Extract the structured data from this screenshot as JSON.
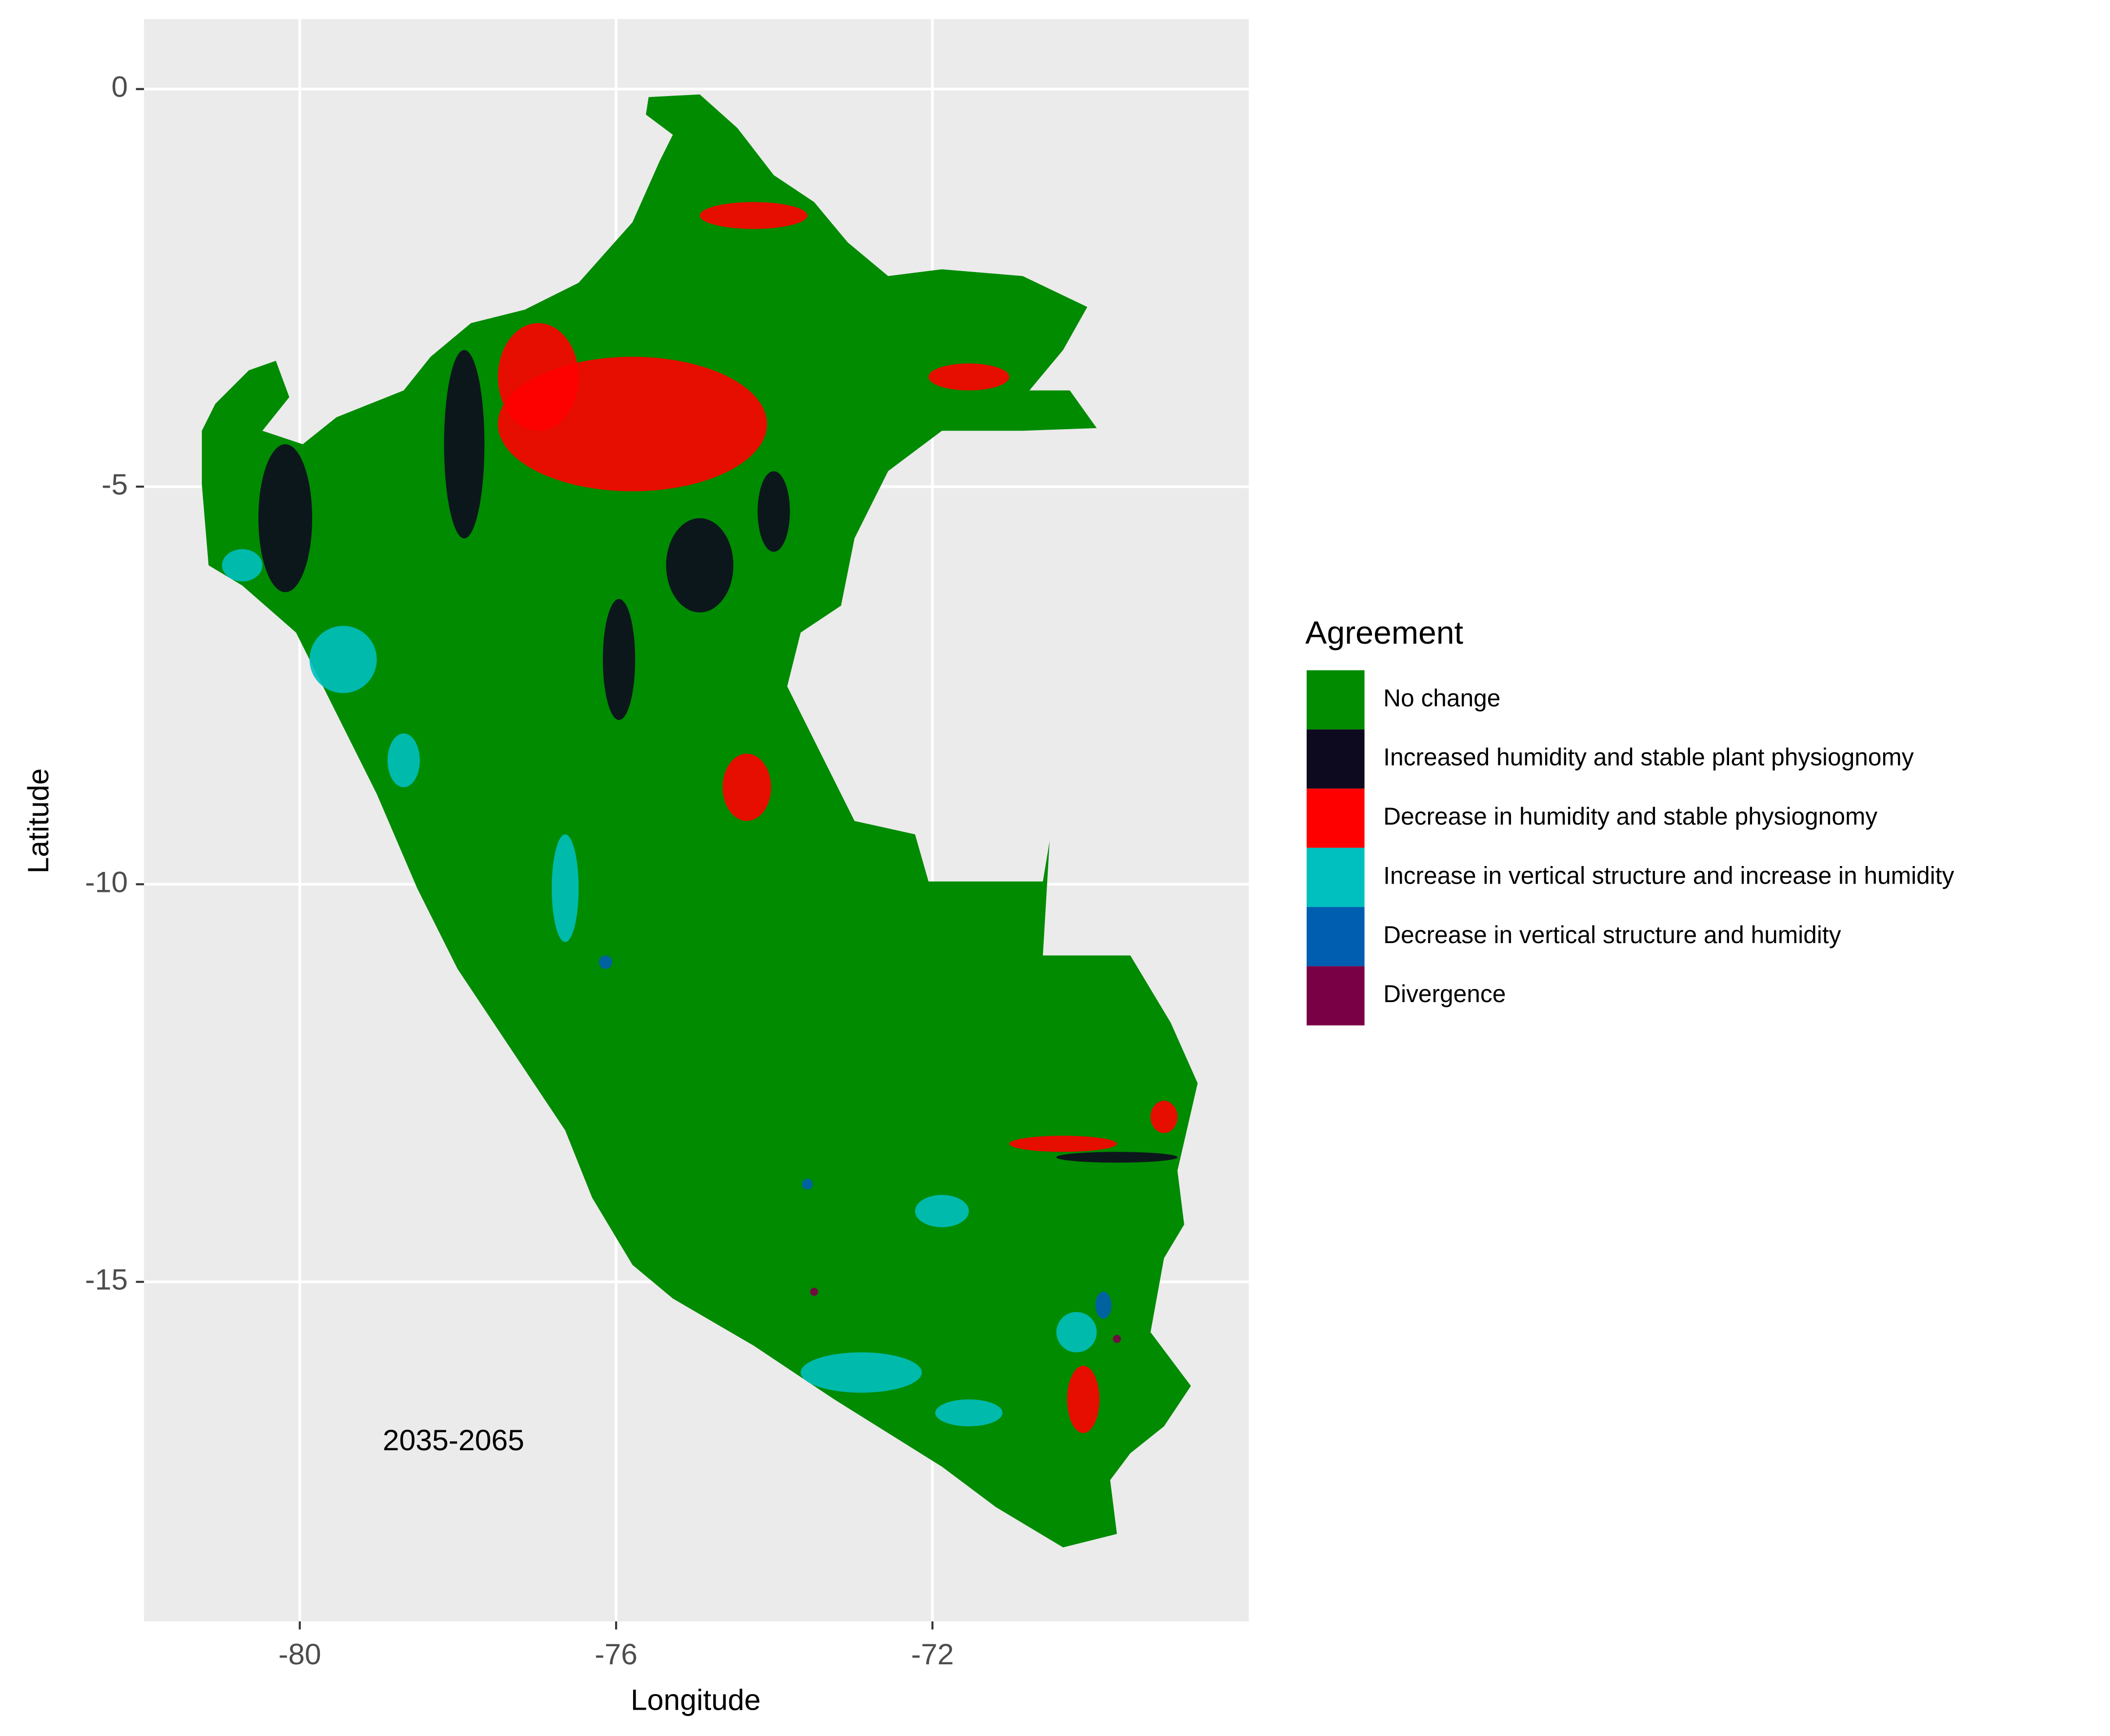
{
  "chart_data": {
    "type": "map",
    "x_label": "Longitude",
    "y_label": "Latitude",
    "xlim": [
      -81.97,
      -68.0
    ],
    "ylim": [
      -19.27,
      0.88
    ],
    "xticks": [
      -80,
      -76,
      -72
    ],
    "yticks": [
      0,
      -5,
      -10,
      -15
    ],
    "grid": true,
    "annotation": "2035-2065",
    "legend": {
      "title": "Agreement",
      "position": "right"
    },
    "series": [
      {
        "name": "No change",
        "color": "#008b00"
      },
      {
        "name": "Increased humidity and stable plant physiognomy",
        "color": "#0d0a1f"
      },
      {
        "name": "Decrease in humidity and stable physiognomy",
        "color": "#ff0000"
      },
      {
        "name": "Increase in vertical structure and increase in humidity",
        "color": "#00bfbf"
      },
      {
        "name": "Decrease in vertical structure and humidity",
        "color": "#005eb0"
      },
      {
        "name": "Divergence",
        "color": "#7a0046"
      }
    ]
  }
}
